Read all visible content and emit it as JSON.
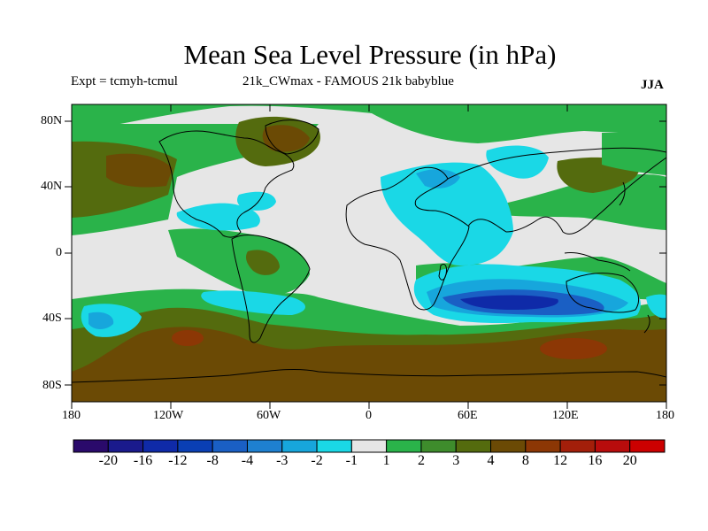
{
  "title": "Mean Sea Level Pressure (in hPa)",
  "expt_label": "Expt = tcmyh-tcmul",
  "run_label": "21k_CWmax - FAMOUS 21k babyblue",
  "season": "JJA",
  "lat_ticks": [
    "80N",
    "40N",
    "0",
    "40S",
    "80S"
  ],
  "lon_ticks": [
    "180",
    "120W",
    "60W",
    "0",
    "60E",
    "120E",
    "180"
  ],
  "colorbar": {
    "levels": [
      "-20",
      "-16",
      "-12",
      "-8",
      "-4",
      "-3",
      "-2",
      "-1",
      "1",
      "2",
      "3",
      "4",
      "8",
      "12",
      "16",
      "20"
    ],
    "colors": [
      "#2a0a6b",
      "#1a1a8c",
      "#0f2aa8",
      "#0a3fb4",
      "#1a5fc4",
      "#1e80d0",
      "#17a6dc",
      "#1ad8e6",
      "#e6e6e6",
      "#2ab34a",
      "#3e8c2c",
      "#546b0e",
      "#6b4a05",
      "#8c3705",
      "#a31f0a",
      "#b80c0c",
      "#cc0000"
    ]
  },
  "colors": {
    "background": "#e6e6e6",
    "coast": "#000000"
  }
}
